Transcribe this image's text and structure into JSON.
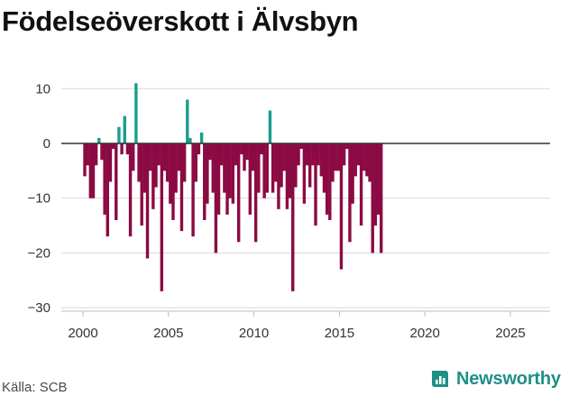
{
  "title": "Födelseöverskott i Älvsbyn",
  "source": "Källa: SCB",
  "brand": {
    "name": "Newsworthy",
    "icon": "newsworthy-logo-icon"
  },
  "colors": {
    "positive": "#1a9e8f",
    "negative": "#8c0a43",
    "grid": "#d9d9d9",
    "zero_line": "#333333",
    "brand": "#1f8f86"
  },
  "chart_data": {
    "type": "bar",
    "title": "Födelseöverskott i Älvsbyn",
    "xlabel": "",
    "ylabel": "",
    "ylim": [
      -30,
      12
    ],
    "xlim": [
      1999.0,
      2026.7
    ],
    "y_ticks": [
      10,
      0,
      -10,
      -20,
      -30
    ],
    "y_tick_labels": [
      "10",
      "0",
      "−10",
      "−20",
      "−30"
    ],
    "x_ticks": [
      2000,
      2005,
      2010,
      2015,
      2020,
      2025
    ],
    "x_tick_labels": [
      "2000",
      "2005",
      "2010",
      "2015",
      "2020",
      "2025"
    ],
    "grid": true,
    "frequency": "monthly",
    "start": 2000.0,
    "step": 0.1667,
    "values": [
      -6,
      -4,
      -10,
      -10,
      -4,
      1,
      -3,
      -13,
      -17,
      -7,
      -1,
      -14,
      3,
      -2,
      5,
      -2,
      -17,
      -5,
      11,
      -7,
      -15,
      -9,
      -21,
      -5,
      -12,
      -8,
      -4,
      -27,
      -5,
      -7,
      -11,
      -14,
      -9,
      -5,
      -16,
      -7,
      8,
      1,
      -17,
      -7,
      -2,
      2,
      -14,
      -11,
      -3,
      -9,
      -20,
      -13,
      -4,
      -9,
      -13,
      -10,
      -11,
      -4,
      -18,
      -2,
      -5,
      -3,
      -13,
      -5,
      -18,
      -9,
      -2,
      -10,
      -9,
      6,
      -9,
      -7,
      -12,
      -8,
      -5,
      -12,
      -10,
      -27,
      -8,
      -4,
      -1,
      -11,
      -4,
      -8,
      -4,
      -15,
      -4,
      -6,
      -9,
      -13,
      -14,
      -7,
      -5,
      -5,
      -23,
      -4,
      -1,
      -18,
      -11,
      -6,
      -4,
      -15,
      -5,
      -6,
      -7,
      -20,
      -15,
      -13,
      -20
    ]
  }
}
